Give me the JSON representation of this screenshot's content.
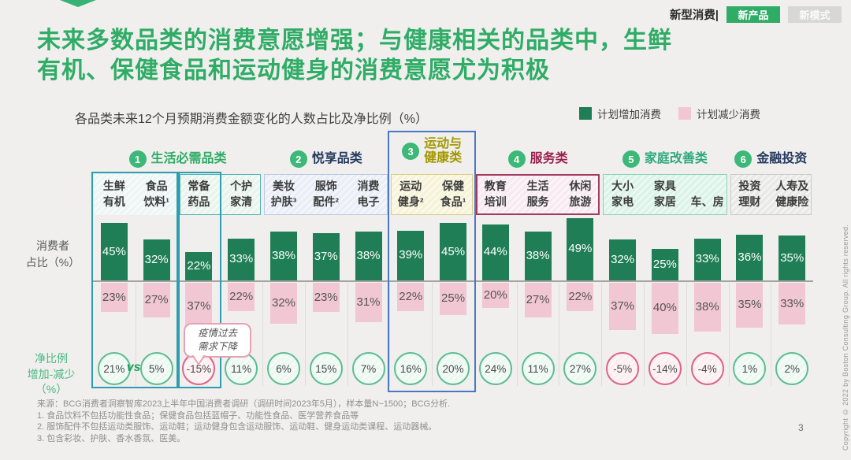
{
  "page": {
    "accent": "#2fac66",
    "page_number": "3",
    "copyright": "Copyright © 2022 by Boston Consulting Group. All rights reserved."
  },
  "header": {
    "brand_label": "新型消费|",
    "tabs": [
      {
        "label": "新产品",
        "active": true
      },
      {
        "label": "新模式",
        "active": false
      }
    ],
    "title": "未来多数品类的消费意愿增强；与健康相关的品类中，生鲜\n有机、保健食品和运动健身的消费意愿尤为积极"
  },
  "chart": {
    "subtitle": "各品类未来12个月预期消费金额变化的人数占比及净比例（%）",
    "axis_label_top": "消费者\n占比（%）",
    "axis_label_bottom": "净比例\n增加-减少\n（%）",
    "vs_label": "vs"
  },
  "chart_data": {
    "type": "bar",
    "title": "各品类未来12个月预期消费金额变化的人数占比及净比例（%）",
    "unit": "%",
    "legend_position": "top-right",
    "categories": [
      "生鲜\n有机",
      "食品\n饮料¹",
      "常备\n药品",
      "个护\n家清",
      "美妆\n护肤³",
      "服饰\n配件²",
      "消费\n电子",
      "运动\n健身²",
      "保健\n食品¹",
      "教育\n培训",
      "生活\n服务",
      "休闲\n旅游",
      "大小\n家电",
      "家具\n家居",
      "\n车、房",
      "投资\n理财",
      "人寿及\n健康险"
    ],
    "groups": [
      {
        "num": "1",
        "label": "生活必需品类",
        "color": "#2fac66",
        "start": 0,
        "end": 3
      },
      {
        "num": "2",
        "label": "悦享品类",
        "color": "#243a5e",
        "start": 4,
        "end": 6
      },
      {
        "num": "3",
        "label": "运动与\n健康类",
        "color": "#a39800",
        "start": 7,
        "end": 8
      },
      {
        "num": "4",
        "label": "服务类",
        "color": "#9b1f4d",
        "start": 9,
        "end": 11
      },
      {
        "num": "5",
        "label": "家庭改善类",
        "color": "#2ba87c",
        "start": 12,
        "end": 14
      },
      {
        "num": "6",
        "label": "金融投资",
        "color": "#243a5e",
        "start": 15,
        "end": 16
      }
    ],
    "header_boxes": [
      {
        "start": 0,
        "end": 1,
        "fill": "#edf6f5",
        "border": "transparent",
        "bw": 0
      },
      {
        "start": 2,
        "end": 3,
        "fill": "#e9f4ed",
        "border": "#4fb3ba",
        "bw": 1
      },
      {
        "start": 4,
        "end": 6,
        "fill": "#e9eef7",
        "border": "#bcc9e2",
        "bw": 1
      },
      {
        "start": 7,
        "end": 8,
        "fill": "#f6f3d8",
        "border": "#d6cf86",
        "bw": 1
      },
      {
        "start": 9,
        "end": 11,
        "fill": "#f8eaf2",
        "border": "#a23b60",
        "bw": 2
      },
      {
        "start": 12,
        "end": 14,
        "fill": "#dbf3e8",
        "border": "#8ed2b3",
        "bw": 1
      },
      {
        "start": 15,
        "end": 16,
        "fill": "#e9e9e7",
        "border": "#cbcbc9",
        "bw": 1
      }
    ],
    "highlight_boxes": [
      {
        "start": 0,
        "end": 1,
        "style": "teal"
      },
      {
        "start": 2,
        "end": 2,
        "style": "teal"
      },
      {
        "start": 7,
        "end": 8,
        "style": "blue"
      }
    ],
    "series": [
      {
        "name": "计划增加消费",
        "color": "#1f7e55",
        "values": [
          45,
          32,
          22,
          33,
          38,
          37,
          38,
          39,
          45,
          44,
          38,
          49,
          32,
          25,
          33,
          36,
          35
        ]
      },
      {
        "name": "计划减少消费",
        "color": "#f1c7d3",
        "values": [
          23,
          27,
          37,
          22,
          32,
          23,
          31,
          22,
          25,
          20,
          27,
          22,
          37,
          40,
          38,
          35,
          33
        ]
      },
      {
        "name": "净比例（增加-减少）",
        "values": [
          21,
          5,
          -15,
          11,
          6,
          15,
          7,
          16,
          20,
          24,
          11,
          27,
          -5,
          -14,
          -4,
          1,
          2
        ]
      }
    ],
    "annotations": [
      {
        "text": "疫情过去\n需求下降",
        "target_category": "常备药品"
      }
    ]
  },
  "footnotes": [
    "来源：BCG消费者洞察智库2023上半年中国消费者调研（调研时间2023年5月），样本量N~1500；BCG分析.",
    "1.    食品饮料不包括功能性食品；保健食品包括蓝帽子、功能性食品、医学营养食品等",
    "2.    服饰配件不包括运动类服饰、运动鞋；运动健身包含运动服饰、运动鞋、健身运动类课程、运动器械。",
    "3.    包含彩妆、护肤、香水香氛、医美。"
  ]
}
